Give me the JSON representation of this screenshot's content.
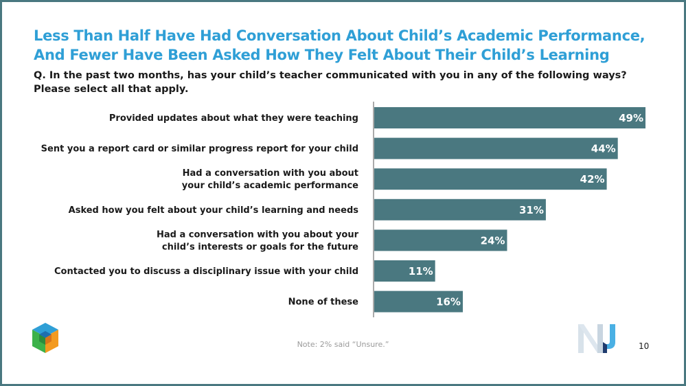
{
  "title_line1": "Less Than Half Have Had Conversation About Child’s Academic Performance,",
  "title_line2": "And Fewer Have Been Asked How They Felt About Their Child’s Learning",
  "question_line1": "Q. In the past two months, has your child’s teacher communicated with you in any of the following ways?",
  "question_line2": "Please select all that apply.",
  "note": "Note: 2% said “Unsure.”",
  "page_number": "10",
  "colors": {
    "title": "#2f9fd6",
    "bar": "#4a7880",
    "frame": "#4a7880"
  },
  "chart_data": {
    "type": "bar",
    "orientation": "horizontal",
    "categories": [
      [
        "Provided updates about what they were teaching"
      ],
      [
        "Sent you a report card or similar progress report for your child"
      ],
      [
        "Had a conversation with you about",
        "your child’s academic performance"
      ],
      [
        "Asked how you felt about your child’s learning and needs"
      ],
      [
        "Had a conversation with you about your",
        "child’s interests or goals for the future"
      ],
      [
        "Contacted you to discuss a disciplinary issue with your child"
      ],
      [
        "None of these"
      ]
    ],
    "values": [
      49,
      44,
      42,
      31,
      24,
      11,
      16
    ],
    "value_labels": [
      "49%",
      "44%",
      "42%",
      "31%",
      "24%",
      "11%",
      "16%"
    ],
    "unit": "%",
    "xlim": [
      0,
      49
    ],
    "grid": false,
    "legend": "none"
  }
}
